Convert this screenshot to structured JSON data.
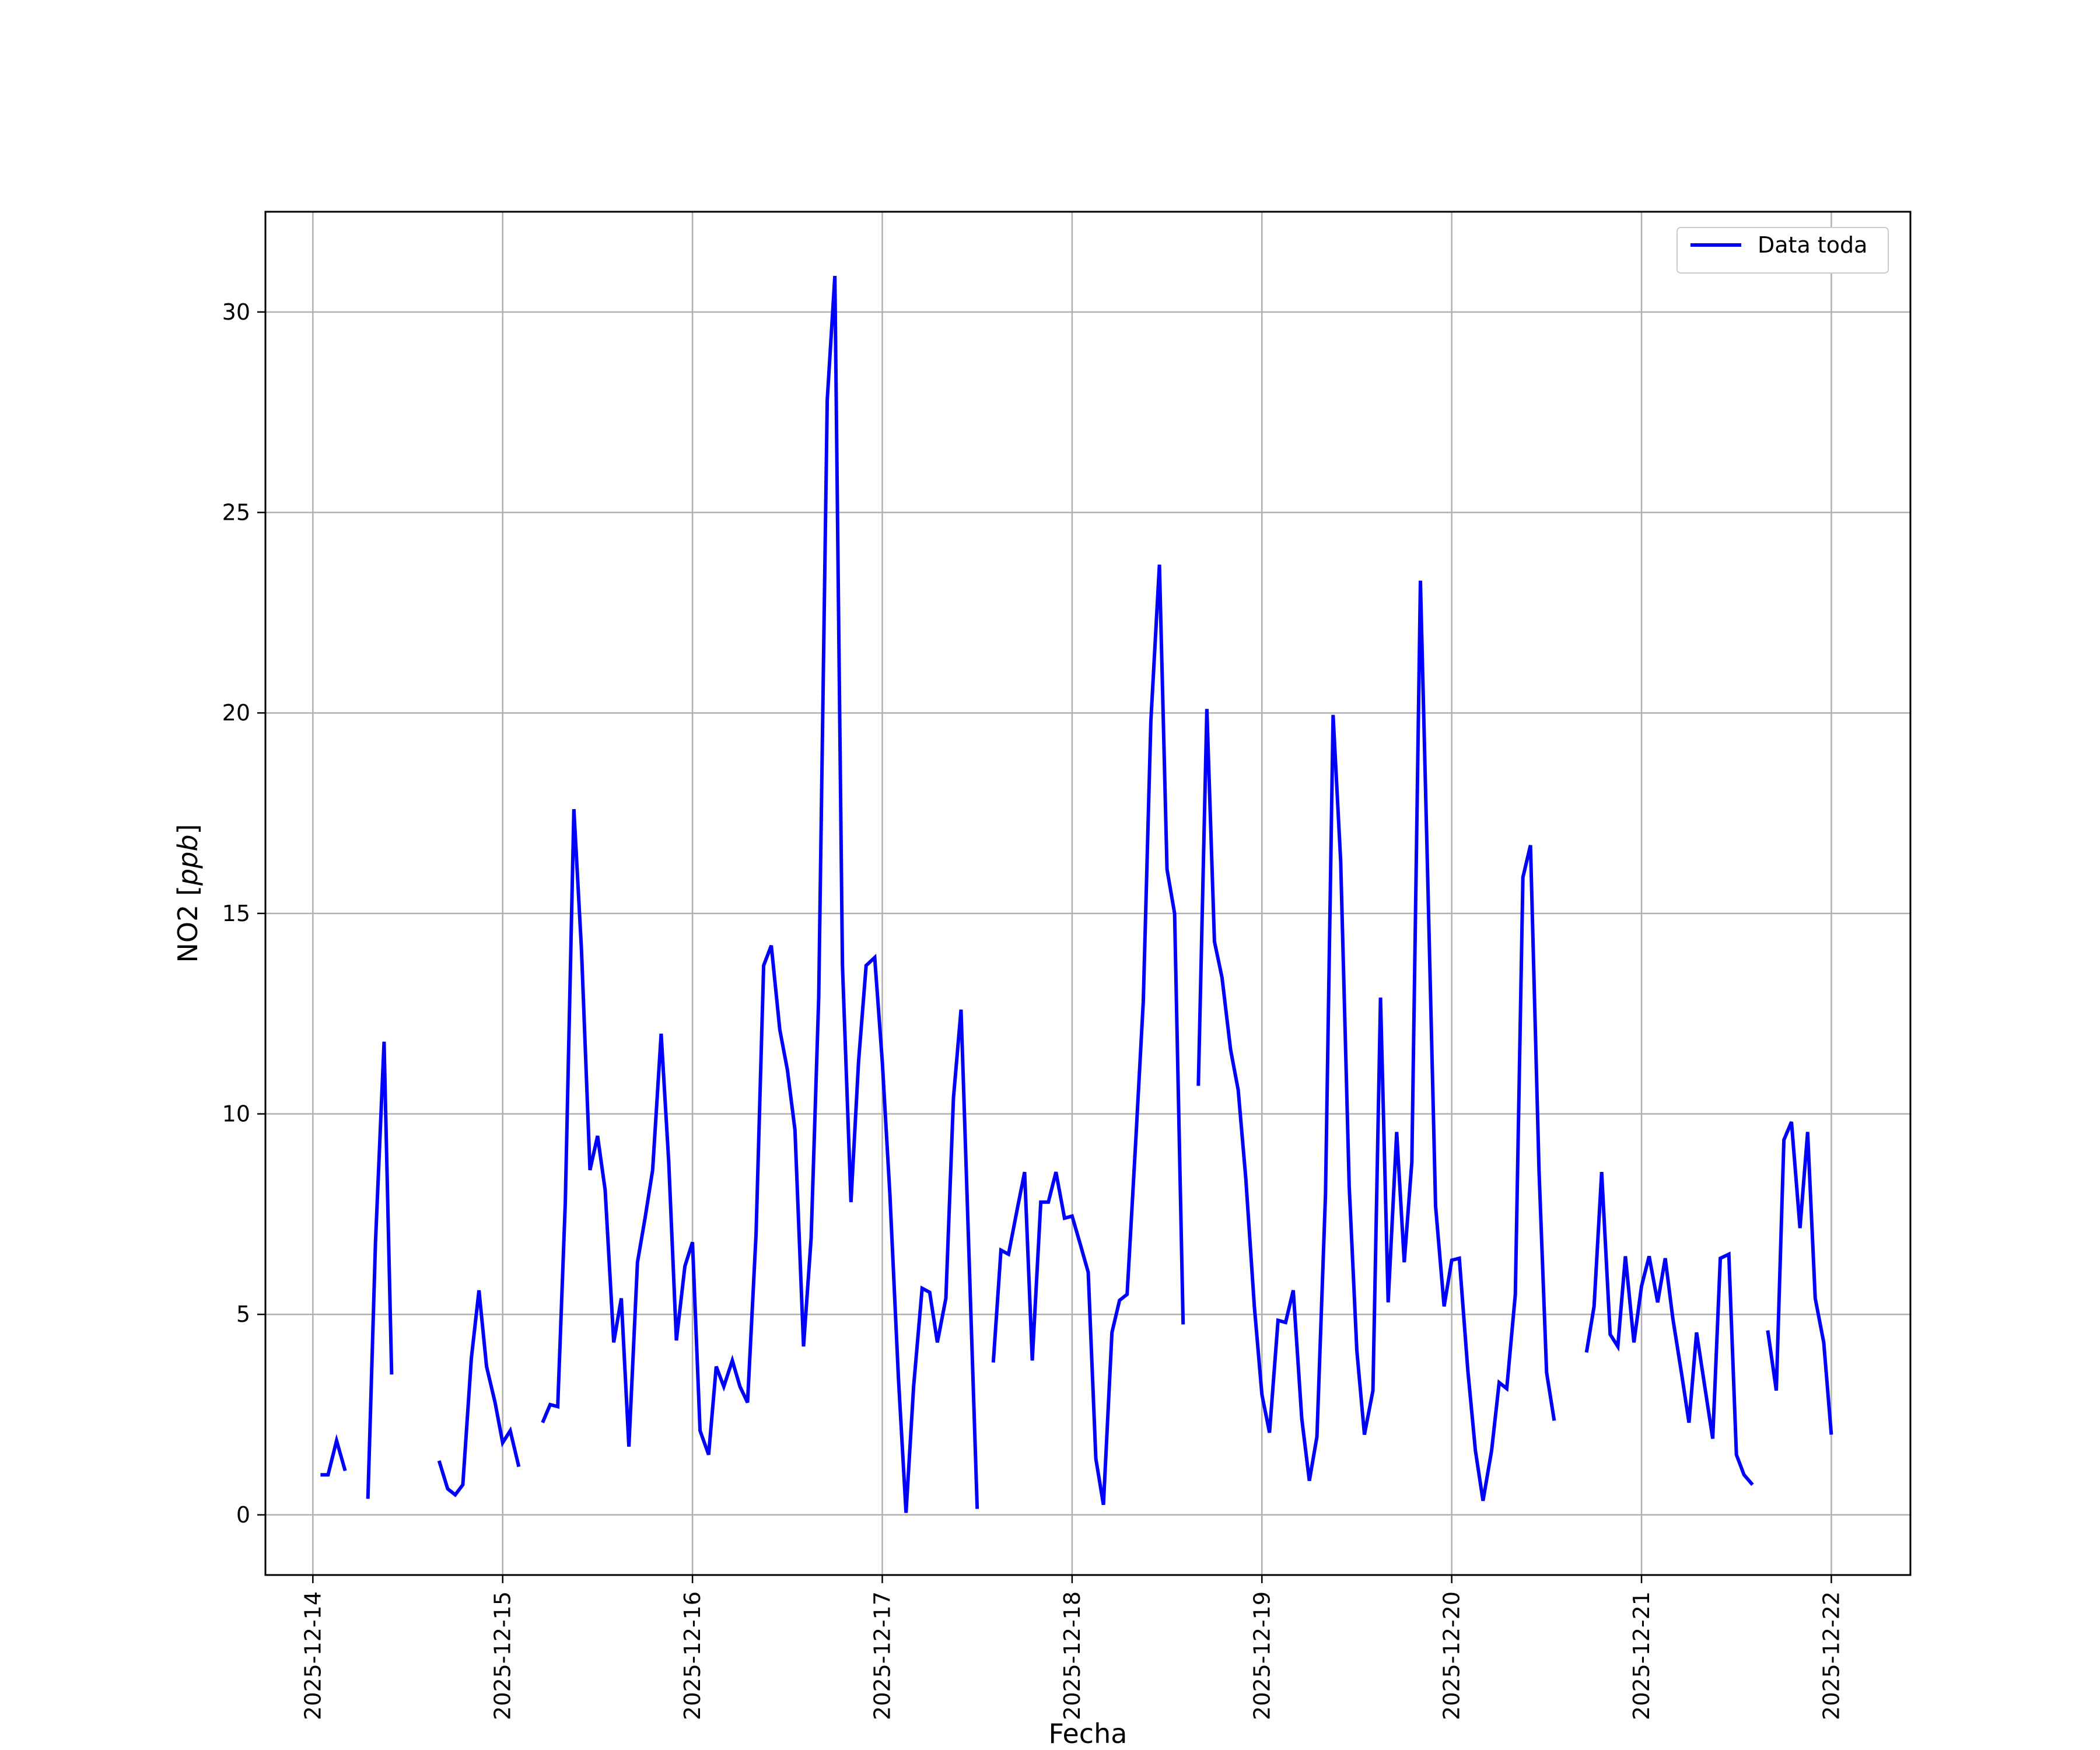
{
  "chart_data": {
    "type": "line",
    "title": "",
    "xlabel": "Fecha",
    "ylabel_base": "NO2 [",
    "ylabel_unit": "ppb",
    "ylabel_close": "]",
    "x_start": "2025-12-14",
    "xlim": [
      "2025-12-13T18:00",
      "2025-12-22T10:00"
    ],
    "ylim": [
      -1.5,
      32.5
    ],
    "x_ticks": [
      "2025-12-14",
      "2025-12-15",
      "2025-12-16",
      "2025-12-17",
      "2025-12-18",
      "2025-12-19",
      "2025-12-20",
      "2025-12-21",
      "2025-12-22"
    ],
    "y_ticks": [
      0,
      5,
      10,
      15,
      20,
      25,
      30
    ],
    "grid": true,
    "legend_position": "top-right",
    "colors": {
      "line": "#0000ff",
      "grid": "#b0b0b0",
      "axes": "#000000"
    },
    "series": [
      {
        "name": "Data toda",
        "segments": [
          [
            [
              0.04,
              1.0
            ],
            [
              0.08,
              1.0
            ],
            [
              0.125,
              1.85
            ],
            [
              0.17,
              1.1
            ]
          ],
          [
            [
              0.29,
              0.4
            ],
            [
              0.33,
              6.8
            ],
            [
              0.375,
              11.8
            ],
            [
              0.415,
              3.5
            ]
          ],
          [
            [
              0.665,
              1.35
            ],
            [
              0.71,
              0.65
            ],
            [
              0.75,
              0.5
            ],
            [
              0.79,
              0.75
            ],
            [
              0.835,
              3.9
            ],
            [
              0.875,
              5.6
            ],
            [
              0.915,
              3.7
            ],
            [
              0.96,
              2.8
            ],
            [
              1.0,
              1.8
            ],
            [
              1.04,
              2.1
            ],
            [
              1.085,
              1.2
            ]
          ],
          [
            [
              1.21,
              2.3
            ],
            [
              1.25,
              2.75
            ],
            [
              1.29,
              2.7
            ],
            [
              1.33,
              7.8
            ],
            [
              1.375,
              17.6
            ],
            [
              1.415,
              14.1
            ],
            [
              1.46,
              8.6
            ],
            [
              1.5,
              9.45
            ],
            [
              1.54,
              8.1
            ],
            [
              1.585,
              4.3
            ],
            [
              1.625,
              5.4
            ],
            [
              1.665,
              1.7
            ],
            [
              1.71,
              6.3
            ],
            [
              1.75,
              7.4
            ],
            [
              1.79,
              8.6
            ],
            [
              1.835,
              12.0
            ],
            [
              1.875,
              8.8
            ],
            [
              1.915,
              4.35
            ],
            [
              1.96,
              6.2
            ],
            [
              2.0,
              6.8
            ],
            [
              2.04,
              2.1
            ],
            [
              2.085,
              1.5
            ],
            [
              2.125,
              3.7
            ],
            [
              2.165,
              3.2
            ],
            [
              2.21,
              3.85
            ],
            [
              2.25,
              3.2
            ],
            [
              2.29,
              2.8
            ],
            [
              2.335,
              7.0
            ],
            [
              2.375,
              13.7
            ],
            [
              2.415,
              14.2
            ],
            [
              2.46,
              12.1
            ],
            [
              2.5,
              11.1
            ],
            [
              2.54,
              9.6
            ],
            [
              2.585,
              4.2
            ],
            [
              2.625,
              6.9
            ],
            [
              2.665,
              12.9
            ],
            [
              2.71,
              27.8
            ],
            [
              2.75,
              30.9
            ],
            [
              2.79,
              13.7
            ],
            [
              2.835,
              7.8
            ],
            [
              2.875,
              11.3
            ],
            [
              2.915,
              13.7
            ],
            [
              2.96,
              13.9
            ],
            [
              3.0,
              11.3
            ],
            [
              3.04,
              8.0
            ],
            [
              3.085,
              3.4
            ],
            [
              3.125,
              0.05
            ],
            [
              3.165,
              3.2
            ],
            [
              3.21,
              5.65
            ],
            [
              3.25,
              5.55
            ],
            [
              3.29,
              4.3
            ],
            [
              3.335,
              5.4
            ],
            [
              3.375,
              10.4
            ],
            [
              3.415,
              12.6
            ],
            [
              3.46,
              6.0
            ],
            [
              3.5,
              0.15
            ]
          ],
          [
            [
              3.585,
              3.8
            ],
            [
              3.625,
              6.6
            ],
            [
              3.665,
              6.5
            ],
            [
              3.71,
              7.6
            ],
            [
              3.75,
              8.55
            ],
            [
              3.79,
              3.85
            ],
            [
              3.835,
              7.8
            ],
            [
              3.875,
              7.8
            ],
            [
              3.915,
              8.55
            ],
            [
              3.96,
              7.4
            ],
            [
              4.0,
              7.45
            ],
            [
              4.04,
              6.8
            ],
            [
              4.085,
              6.05
            ],
            [
              4.125,
              1.4
            ],
            [
              4.165,
              0.25
            ],
            [
              4.21,
              4.55
            ],
            [
              4.25,
              5.35
            ],
            [
              4.29,
              5.5
            ],
            [
              4.335,
              9.3
            ],
            [
              4.375,
              12.8
            ],
            [
              4.415,
              19.8
            ],
            [
              4.46,
              23.7
            ],
            [
              4.5,
              16.1
            ],
            [
              4.54,
              15.0
            ],
            [
              4.585,
              4.75
            ]
          ],
          [
            [
              4.665,
              10.7
            ],
            [
              4.71,
              20.1
            ],
            [
              4.75,
              14.3
            ],
            [
              4.79,
              13.4
            ],
            [
              4.835,
              11.6
            ],
            [
              4.875,
              10.6
            ],
            [
              4.915,
              8.4
            ],
            [
              4.96,
              5.2
            ],
            [
              5.0,
              3.0
            ],
            [
              5.04,
              2.05
            ],
            [
              5.085,
              4.85
            ],
            [
              5.125,
              4.8
            ],
            [
              5.165,
              5.6
            ],
            [
              5.21,
              2.4
            ],
            [
              5.25,
              0.85
            ],
            [
              5.29,
              1.95
            ],
            [
              5.335,
              8.0
            ],
            [
              5.375,
              19.95
            ],
            [
              5.415,
              16.3
            ],
            [
              5.46,
              8.2
            ],
            [
              5.5,
              4.1
            ],
            [
              5.54,
              2.0
            ],
            [
              5.585,
              3.1
            ],
            [
              5.625,
              12.9
            ],
            [
              5.665,
              5.3
            ],
            [
              5.71,
              9.55
            ],
            [
              5.75,
              6.3
            ],
            [
              5.79,
              8.8
            ],
            [
              5.835,
              23.3
            ],
            [
              5.875,
              15.6
            ],
            [
              5.915,
              7.7
            ],
            [
              5.96,
              5.2
            ],
            [
              6.0,
              6.35
            ],
            [
              6.04,
              6.4
            ],
            [
              6.085,
              3.6
            ],
            [
              6.125,
              1.6
            ],
            [
              6.165,
              0.35
            ],
            [
              6.21,
              1.6
            ],
            [
              6.25,
              3.3
            ],
            [
              6.29,
              3.15
            ],
            [
              6.335,
              5.5
            ],
            [
              6.375,
              15.9
            ],
            [
              6.415,
              16.7
            ],
            [
              6.46,
              8.6
            ],
            [
              6.5,
              3.55
            ],
            [
              6.54,
              2.35
            ]
          ],
          [
            [
              6.71,
              4.05
            ],
            [
              6.75,
              5.2
            ],
            [
              6.79,
              8.55
            ],
            [
              6.835,
              4.5
            ],
            [
              6.875,
              4.2
            ],
            [
              6.915,
              6.45
            ],
            [
              6.96,
              4.3
            ],
            [
              7.0,
              5.7
            ],
            [
              7.04,
              6.45
            ],
            [
              7.085,
              5.3
            ],
            [
              7.125,
              6.4
            ],
            [
              7.165,
              4.9
            ],
            [
              7.21,
              3.55
            ],
            [
              7.25,
              2.3
            ],
            [
              7.29,
              4.55
            ],
            [
              7.335,
              3.15
            ],
            [
              7.375,
              1.9
            ],
            [
              7.415,
              6.4
            ],
            [
              7.46,
              6.5
            ],
            [
              7.5,
              1.5
            ],
            [
              7.54,
              1.0
            ],
            [
              7.585,
              0.75
            ]
          ],
          [
            [
              7.665,
              4.6
            ],
            [
              7.71,
              3.1
            ],
            [
              7.75,
              9.35
            ],
            [
              7.79,
              9.8
            ],
            [
              7.835,
              7.15
            ],
            [
              7.875,
              9.55
            ],
            [
              7.915,
              5.4
            ],
            [
              7.96,
              4.3
            ],
            [
              8.0,
              2.0
            ]
          ]
        ]
      }
    ]
  }
}
